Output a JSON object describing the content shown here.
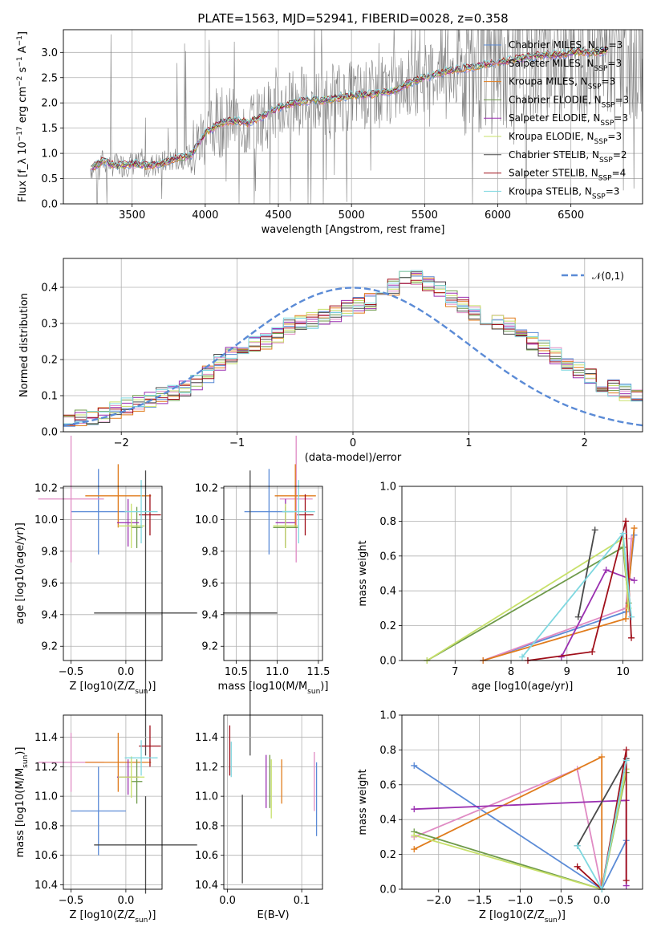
{
  "figure": {
    "title": "PLATE=1563, MJD=52941, FIBERID=0028, z=0.358"
  },
  "colors": {
    "Chabrier MILES": "#5b8bd6",
    "Salpeter MILES": "#e08bc4",
    "Kroupa MILES": "#e07b1c",
    "Chabrier ELODIE": "#6e9a4a",
    "Salpeter ELODIE": "#9a2fb0",
    "Kroupa ELODIE": "#c7e06a",
    "Chabrier STELIB": "#4a4a4a",
    "Salpeter STELIB": "#a00f1a",
    "Kroupa STELIB": "#7fd8e0",
    "data": "#808080",
    "normal": "#5b8bd6"
  },
  "chart_data": [
    {
      "id": "spectrum",
      "type": "line",
      "title": "PLATE=1563, MJD=52941, FIBERID=0028, z=0.358",
      "xlabel": "wavelength [Angstrom, rest frame]",
      "ylabel": "Flux [f_λ 10^-17 erg cm^-2 s^-1 A^-1]",
      "xlim": [
        3030,
        6990
      ],
      "ylim": [
        0,
        3.45
      ],
      "xticks": [
        3500,
        4000,
        4500,
        5000,
        5500,
        6000,
        6500
      ],
      "yticks": [
        0.0,
        0.5,
        1.0,
        1.5,
        2.0,
        2.5,
        3.0
      ],
      "legend": [
        "Chabrier MILES, N_SSP=3",
        "Salpeter MILES, N_SSP=3",
        "Kroupa MILES, N_SSP=3",
        "Chabrier ELODIE, N_SSP=3",
        "Salpeter ELODIE, N_SSP=3",
        "Kroupa ELODIE, N_SSP=3",
        "Chabrier STELIB, N_SSP=2",
        "Salpeter STELIB, N_SSP=4",
        "Kroupa STELIB, N_SSP=3"
      ],
      "model_continuum": {
        "x": [
          3220,
          3300,
          3400,
          3500,
          3600,
          3700,
          3800,
          3900,
          4000,
          4100,
          4200,
          4300,
          4400,
          4500,
          4600,
          4700,
          4800,
          4900,
          5000,
          5100,
          5200,
          5300,
          5400,
          5500,
          5600,
          5700,
          5800,
          5900,
          6000,
          6100,
          6200,
          6300,
          6400,
          6500,
          6600,
          6700,
          6750
        ],
        "y": [
          0.7,
          0.85,
          0.75,
          0.8,
          0.75,
          0.8,
          0.9,
          0.95,
          1.4,
          1.6,
          1.65,
          1.6,
          1.75,
          1.9,
          2.0,
          2.05,
          2.05,
          2.1,
          2.15,
          2.15,
          2.2,
          2.25,
          2.4,
          2.5,
          2.6,
          2.65,
          2.7,
          2.75,
          2.8,
          2.85,
          2.9,
          2.95,
          2.95,
          3.0,
          3.0,
          3.0,
          3.05
        ]
      }
    },
    {
      "id": "residuals",
      "type": "line",
      "xlabel": "(data-model)/error",
      "ylabel": "Normed distribution",
      "xlim": [
        -2.5,
        2.5
      ],
      "ylim": [
        0,
        0.48
      ],
      "xticks": [
        -2,
        -1,
        0,
        1,
        2
      ],
      "yticks": [
        0.0,
        0.1,
        0.2,
        0.3,
        0.4
      ],
      "legend": [
        "N(0,1)"
      ],
      "bin_width": 0.1,
      "histogram_mean": [
        0.03,
        0.04,
        0.04,
        0.05,
        0.06,
        0.07,
        0.08,
        0.09,
        0.1,
        0.11,
        0.12,
        0.14,
        0.16,
        0.19,
        0.21,
        0.23,
        0.24,
        0.25,
        0.27,
        0.29,
        0.3,
        0.31,
        0.32,
        0.33,
        0.34,
        0.35,
        0.36,
        0.38,
        0.4,
        0.42,
        0.43,
        0.41,
        0.4,
        0.37,
        0.35,
        0.33,
        0.31,
        0.3,
        0.29,
        0.27,
        0.25,
        0.23,
        0.21,
        0.19,
        0.17,
        0.15,
        0.13,
        0.12,
        0.11,
        0.1
      ]
    },
    {
      "id": "age-vs-Z",
      "type": "scatter",
      "xlabel": "Z [log10(Z/Z_sun)]",
      "ylabel": "age [log10(age/yr)]",
      "xlim": [
        -0.57,
        0.33
      ],
      "ylim": [
        9.11,
        10.21
      ],
      "xticks": [
        -0.5,
        0.0
      ],
      "yticks": [
        9.2,
        9.4,
        9.6,
        9.8,
        10.0,
        10.2
      ],
      "points": [
        {
          "name": "Chabrier MILES",
          "x": -0.25,
          "xerr": 0.25,
          "y": 10.05,
          "yerr": 0.27
        },
        {
          "name": "Salpeter MILES",
          "x": -0.5,
          "xerr": 0.3,
          "y": 10.13,
          "yerr": 0.4
        },
        {
          "name": "Kroupa MILES",
          "x": -0.07,
          "xerr": 0.3,
          "y": 10.15,
          "yerr": 0.2
        },
        {
          "name": "Chabrier ELODIE",
          "x": 0.1,
          "xerr": 0.05,
          "y": 9.95,
          "yerr": 0.13
        },
        {
          "name": "Salpeter ELODIE",
          "x": 0.02,
          "xerr": 0.1,
          "y": 9.98,
          "yerr": 0.15
        },
        {
          "name": "Kroupa ELODIE",
          "x": 0.05,
          "xerr": 0.12,
          "y": 9.96,
          "yerr": 0.14
        },
        {
          "name": "Chabrier STELIB",
          "x": 0.18,
          "xerr": 0.47,
          "y": 9.41,
          "yerr": 0.9
        },
        {
          "name": "Salpeter STELIB",
          "x": 0.22,
          "xerr": 0.1,
          "y": 10.03,
          "yerr": 0.13
        },
        {
          "name": "Kroupa STELIB",
          "x": 0.14,
          "xerr": 0.15,
          "y": 10.05,
          "yerr": 0.2
        }
      ]
    },
    {
      "id": "age-vs-mass",
      "type": "scatter",
      "xlabel": "mass [log10(M/M_sun)]",
      "xlim": [
        10.35,
        11.55
      ],
      "ylim": [
        9.11,
        10.21
      ],
      "xticks": [
        10.5,
        11.0,
        11.5
      ],
      "yticks": [
        9.2,
        9.4,
        9.6,
        9.8,
        10.0,
        10.2
      ],
      "points": [
        {
          "name": "Chabrier MILES",
          "x": 10.9,
          "xerr": 0.3,
          "y": 10.05,
          "yerr": 0.27
        },
        {
          "name": "Salpeter MILES",
          "x": 11.23,
          "xerr": 0.2,
          "y": 10.13,
          "yerr": 0.4
        },
        {
          "name": "Kroupa MILES",
          "x": 11.22,
          "xerr": 0.25,
          "y": 10.15,
          "yerr": 0.2
        },
        {
          "name": "Chabrier ELODIE",
          "x": 11.1,
          "xerr": 0.15,
          "y": 9.95,
          "yerr": 0.13
        },
        {
          "name": "Salpeter ELODIE",
          "x": 11.1,
          "xerr": 0.12,
          "y": 9.98,
          "yerr": 0.15
        },
        {
          "name": "Kroupa ELODIE",
          "x": 11.1,
          "xerr": 0.15,
          "y": 9.96,
          "yerr": 0.14
        },
        {
          "name": "Chabrier STELIB",
          "x": 10.67,
          "xerr": 0.33,
          "y": 9.41,
          "yerr": 0.9
        },
        {
          "name": "Salpeter STELIB",
          "x": 11.34,
          "xerr": 0.1,
          "y": 10.03,
          "yerr": 0.13
        },
        {
          "name": "Kroupa STELIB",
          "x": 11.26,
          "xerr": 0.2,
          "y": 10.05,
          "yerr": 0.2
        }
      ]
    },
    {
      "id": "massweight-vs-age",
      "type": "line",
      "xlabel": "age [log10(age/yr)]",
      "ylabel": "mass weight",
      "xlim": [
        6.05,
        10.35
      ],
      "ylim": [
        0,
        1.0
      ],
      "xticks": [
        7,
        8,
        9,
        10
      ],
      "yticks": [
        0.0,
        0.2,
        0.4,
        0.6,
        0.8,
        1.0
      ],
      "series": [
        {
          "name": "Chabrier MILES",
          "x": [
            7.5,
            10.05,
            10.2
          ],
          "y": [
            0.0,
            0.28,
            0.72
          ]
        },
        {
          "name": "Salpeter MILES",
          "x": [
            7.5,
            10.05,
            10.15
          ],
          "y": [
            0.0,
            0.3,
            0.7
          ]
        },
        {
          "name": "Kroupa MILES",
          "x": [
            7.5,
            10.05,
            10.2
          ],
          "y": [
            0.0,
            0.24,
            0.76
          ]
        },
        {
          "name": "Chabrier ELODIE",
          "x": [
            6.5,
            10.0,
            10.1
          ],
          "y": [
            0.0,
            0.65,
            0.33
          ]
        },
        {
          "name": "Salpeter ELODIE",
          "x": [
            8.9,
            9.7,
            10.2
          ],
          "y": [
            0.02,
            0.52,
            0.46
          ]
        },
        {
          "name": "Kroupa ELODIE",
          "x": [
            6.5,
            10.0,
            10.1
          ],
          "y": [
            0.0,
            0.7,
            0.3
          ]
        },
        {
          "name": "Chabrier STELIB",
          "x": [
            9.2,
            9.5
          ],
          "y": [
            0.25,
            0.75
          ]
        },
        {
          "name": "Salpeter STELIB",
          "x": [
            8.3,
            9.45,
            10.05,
            10.15
          ],
          "y": [
            0.0,
            0.05,
            0.8,
            0.13
          ]
        },
        {
          "name": "Kroupa STELIB",
          "x": [
            8.2,
            10.0,
            10.15
          ],
          "y": [
            0.02,
            0.73,
            0.25
          ]
        }
      ]
    },
    {
      "id": "mass-vs-Z",
      "type": "scatter",
      "xlabel": "Z [log10(Z/Z_sun)]",
      "ylabel": "mass [log10(M/M_sun)]",
      "xlim": [
        -0.57,
        0.33
      ],
      "ylim": [
        10.37,
        11.55
      ],
      "xticks": [
        -0.5,
        0.0
      ],
      "yticks": [
        10.4,
        10.6,
        10.8,
        11.0,
        11.2,
        11.4
      ],
      "points": [
        {
          "name": "Chabrier MILES",
          "x": -0.25,
          "xerr": 0.25,
          "y": 10.9,
          "yerr": 0.3
        },
        {
          "name": "Salpeter MILES",
          "x": -0.5,
          "xerr": 0.3,
          "y": 11.23,
          "yerr": 0.2
        },
        {
          "name": "Kroupa MILES",
          "x": -0.07,
          "xerr": 0.3,
          "y": 11.23,
          "yerr": 0.2
        },
        {
          "name": "Chabrier ELODIE",
          "x": 0.1,
          "xerr": 0.05,
          "y": 11.1,
          "yerr": 0.15
        },
        {
          "name": "Salpeter ELODIE",
          "x": 0.02,
          "xerr": 0.1,
          "y": 11.13,
          "yerr": 0.12
        },
        {
          "name": "Kroupa ELODIE",
          "x": 0.05,
          "xerr": 0.12,
          "y": 11.13,
          "yerr": 0.14
        },
        {
          "name": "Chabrier STELIB",
          "x": 0.18,
          "xerr": 0.47,
          "y": 10.67,
          "yerr": 0.33
        },
        {
          "name": "Salpeter STELIB",
          "x": 0.22,
          "xerr": 0.1,
          "y": 11.34,
          "yerr": 0.14
        },
        {
          "name": "Kroupa STELIB",
          "x": 0.14,
          "xerr": 0.15,
          "y": 11.26,
          "yerr": 0.12
        }
      ]
    },
    {
      "id": "mass-vs-EBV",
      "type": "scatter",
      "xlabel": "E(B-V)",
      "xlim": [
        -0.005,
        0.128
      ],
      "ylim": [
        10.37,
        11.55
      ],
      "xticks": [
        0.0,
        0.1
      ],
      "yticks": [
        10.4,
        10.6,
        10.8,
        11.0,
        11.2,
        11.4
      ],
      "points": [
        {
          "name": "Chabrier MILES",
          "x": 0.12,
          "y": 10.98,
          "yerr": 0.25
        },
        {
          "name": "Salpeter MILES",
          "x": 0.117,
          "y": 11.1,
          "yerr": 0.2
        },
        {
          "name": "Kroupa MILES",
          "x": 0.073,
          "y": 11.1,
          "yerr": 0.15
        },
        {
          "name": "Chabrier ELODIE",
          "x": 0.057,
          "y": 11.1,
          "yerr": 0.18
        },
        {
          "name": "Salpeter ELODIE",
          "x": 0.052,
          "y": 11.1,
          "yerr": 0.18
        },
        {
          "name": "Kroupa ELODIE",
          "x": 0.059,
          "y": 11.05,
          "yerr": 0.2
        },
        {
          "name": "Chabrier STELIB",
          "x": 0.02,
          "y": 10.71,
          "yerr": 0.3
        },
        {
          "name": "Salpeter STELIB",
          "x": 0.003,
          "y": 11.31,
          "yerr": 0.17
        },
        {
          "name": "Kroupa STELIB",
          "x": 0.005,
          "y": 11.25,
          "yerr": 0.12
        }
      ]
    },
    {
      "id": "massweight-vs-Z",
      "type": "line",
      "xlabel": "Z [log10(Z/Z_sun)]",
      "ylabel": "mass weight",
      "xlim": [
        -2.45,
        0.5
      ],
      "ylim": [
        0,
        1.0
      ],
      "xticks": [
        -2.0,
        -1.5,
        -1.0,
        -0.5,
        0.0
      ],
      "yticks": [
        0.0,
        0.2,
        0.4,
        0.6,
        0.8,
        1.0
      ],
      "series": [
        {
          "name": "Chabrier MILES",
          "x": [
            -2.3,
            0.0,
            0.3
          ],
          "y": [
            0.71,
            0.0,
            0.28
          ]
        },
        {
          "name": "Salpeter MILES",
          "x": [
            -2.3,
            -0.3,
            0.0
          ],
          "y": [
            0.3,
            0.69,
            0.0
          ]
        },
        {
          "name": "Kroupa MILES",
          "x": [
            -2.3,
            0.0,
            0.0
          ],
          "y": [
            0.23,
            0.76,
            0.0
          ]
        },
        {
          "name": "Chabrier ELODIE",
          "x": [
            -2.3,
            0.0,
            0.3
          ],
          "y": [
            0.33,
            0.0,
            0.67
          ]
        },
        {
          "name": "Salpeter ELODIE",
          "x": [
            -2.3,
            0.3,
            0.3
          ],
          "y": [
            0.46,
            0.51,
            0.02
          ]
        },
        {
          "name": "Kroupa ELODIE",
          "x": [
            -2.3,
            0.0,
            0.3
          ],
          "y": [
            0.31,
            0.0,
            0.69
          ]
        },
        {
          "name": "Chabrier STELIB",
          "x": [
            -0.3,
            0.3
          ],
          "y": [
            0.25,
            0.75
          ]
        },
        {
          "name": "Salpeter STELIB",
          "x": [
            -0.3,
            0.0,
            0.3,
            0.3
          ],
          "y": [
            0.13,
            0.0,
            0.8,
            0.05
          ]
        },
        {
          "name": "Kroupa STELIB",
          "x": [
            -0.3,
            0.0,
            0.3
          ],
          "y": [
            0.25,
            0.0,
            0.74
          ]
        }
      ]
    }
  ]
}
